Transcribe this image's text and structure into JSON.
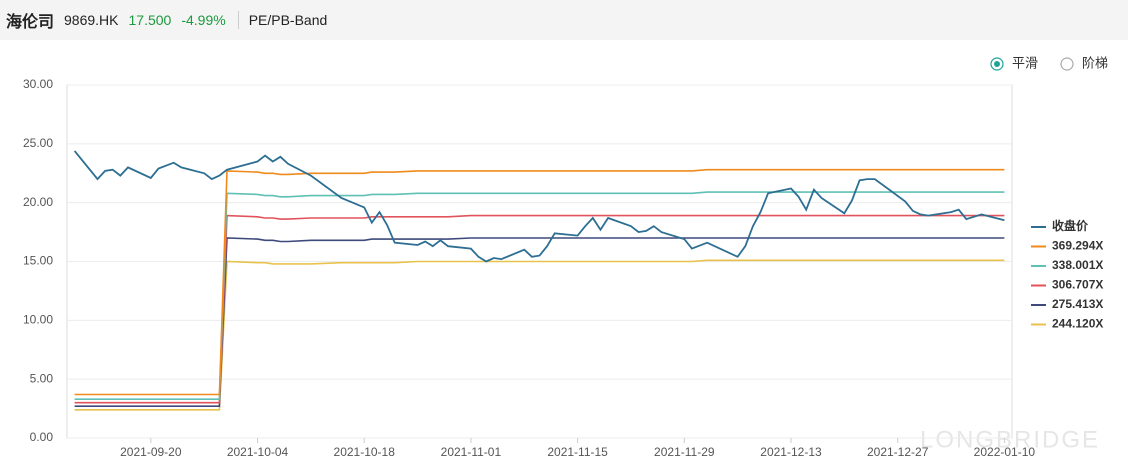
{
  "header": {
    "name": "海伦司",
    "code": "9869.HK",
    "price": "17.500",
    "change": "-4.99%",
    "indicator": "PE/PB-Band"
  },
  "toggle": {
    "options": [
      "平滑",
      "阶梯"
    ]
  },
  "watermark": "LONGBRIDGE",
  "chart_data": {
    "type": "line",
    "x": [
      "2021-09-10",
      "2021-09-13",
      "2021-09-14",
      "2021-09-15",
      "2021-09-16",
      "2021-09-17",
      "2021-09-20",
      "2021-09-21",
      "2021-09-23",
      "2021-09-24",
      "2021-09-27",
      "2021-09-28",
      "2021-09-29",
      "2021-09-30",
      "2021-10-04",
      "2021-10-05",
      "2021-10-06",
      "2021-10-07",
      "2021-10-08",
      "2021-10-11",
      "2021-10-15",
      "2021-10-18",
      "2021-10-19",
      "2021-10-20",
      "2021-10-21",
      "2021-10-22",
      "2021-10-25",
      "2021-10-26",
      "2021-10-27",
      "2021-10-28",
      "2021-10-29",
      "2021-11-01",
      "2021-11-02",
      "2021-11-03",
      "2021-11-04",
      "2021-11-05",
      "2021-11-08",
      "2021-11-09",
      "2021-11-10",
      "2021-11-11",
      "2021-11-12",
      "2021-11-15",
      "2021-11-16",
      "2021-11-17",
      "2021-11-18",
      "2021-11-19",
      "2021-11-22",
      "2021-11-23",
      "2021-11-24",
      "2021-11-25",
      "2021-11-26",
      "2021-11-29",
      "2021-11-30",
      "2021-12-02",
      "2021-12-06",
      "2021-12-07",
      "2021-12-08",
      "2021-12-09",
      "2021-12-10",
      "2021-12-13",
      "2021-12-14",
      "2021-12-15",
      "2021-12-16",
      "2021-12-17",
      "2021-12-20",
      "2021-12-21",
      "2021-12-22",
      "2021-12-23",
      "2021-12-24",
      "2021-12-28",
      "2021-12-29",
      "2021-12-30",
      "2021-12-31",
      "2022-01-03",
      "2022-01-04",
      "2022-01-05",
      "2022-01-06",
      "2022-01-07",
      "2022-01-10"
    ],
    "xlim": [
      "2021-09-09",
      "2022-01-11"
    ],
    "xticks": [
      "2021-09-20",
      "2021-10-04",
      "2021-10-18",
      "2021-11-01",
      "2021-11-15",
      "2021-11-29",
      "2021-12-13",
      "2021-12-27",
      "2022-01-10"
    ],
    "ylim": [
      0,
      30
    ],
    "yticks": [
      {
        "value": 0,
        "label": "0.00"
      },
      {
        "value": 5,
        "label": "5.00"
      },
      {
        "value": 10,
        "label": "10.00"
      },
      {
        "value": 15,
        "label": "15.00"
      },
      {
        "value": 20,
        "label": "20.00"
      },
      {
        "value": 25,
        "label": "25.00"
      },
      {
        "value": 30,
        "label": "30.00"
      }
    ],
    "grid": true,
    "legend": "right",
    "series": [
      {
        "name": "收盘价",
        "color": "#2d6e93",
        "values": [
          24.4,
          22.0,
          22.7,
          22.8,
          22.3,
          23.0,
          22.1,
          22.9,
          23.4,
          23.0,
          22.5,
          22.0,
          22.3,
          22.8,
          23.5,
          24.0,
          23.5,
          23.9,
          23.3,
          22.3,
          20.4,
          19.6,
          18.3,
          19.2,
          18.1,
          16.6,
          16.4,
          16.7,
          16.3,
          16.8,
          16.3,
          16.1,
          15.4,
          15.0,
          15.3,
          15.2,
          16.0,
          15.4,
          15.5,
          16.3,
          17.4,
          17.2,
          18.0,
          18.7,
          17.7,
          18.7,
          18.0,
          17.5,
          17.6,
          18.0,
          17.5,
          16.9,
          16.1,
          16.6,
          15.4,
          16.3,
          18.0,
          19.2,
          20.8,
          21.2,
          20.5,
          19.4,
          21.1,
          20.4,
          19.1,
          20.2,
          21.9,
          22.0,
          22.0,
          20.1,
          19.3,
          19.0,
          18.9,
          19.2,
          19.4,
          18.6,
          18.8,
          19.0,
          18.5
        ]
      },
      {
        "name": "369.294X",
        "color": "#f08a1c",
        "values": [
          3.7,
          3.7,
          3.7,
          3.7,
          3.7,
          3.7,
          3.7,
          3.7,
          3.7,
          3.7,
          3.7,
          3.7,
          3.7,
          22.7,
          22.6,
          22.5,
          22.5,
          22.4,
          22.4,
          22.5,
          22.5,
          22.5,
          22.6,
          22.6,
          22.6,
          22.6,
          22.7,
          22.7,
          22.7,
          22.7,
          22.7,
          22.7,
          22.7,
          22.7,
          22.7,
          22.7,
          22.7,
          22.7,
          22.7,
          22.7,
          22.7,
          22.7,
          22.7,
          22.7,
          22.7,
          22.7,
          22.7,
          22.7,
          22.7,
          22.7,
          22.7,
          22.7,
          22.7,
          22.8,
          22.8,
          22.8,
          22.8,
          22.8,
          22.8,
          22.8,
          22.8,
          22.8,
          22.8,
          22.8,
          22.8,
          22.8,
          22.8,
          22.8,
          22.8,
          22.8,
          22.8,
          22.8,
          22.8,
          22.8,
          22.8,
          22.8,
          22.8,
          22.8,
          22.8
        ]
      },
      {
        "name": "338.001X",
        "color": "#5fc0b5",
        "values": [
          3.3,
          3.3,
          3.3,
          3.3,
          3.3,
          3.3,
          3.3,
          3.3,
          3.3,
          3.3,
          3.3,
          3.3,
          3.3,
          20.8,
          20.7,
          20.6,
          20.6,
          20.5,
          20.5,
          20.6,
          20.6,
          20.6,
          20.7,
          20.7,
          20.7,
          20.7,
          20.8,
          20.8,
          20.8,
          20.8,
          20.8,
          20.8,
          20.8,
          20.8,
          20.8,
          20.8,
          20.8,
          20.8,
          20.8,
          20.8,
          20.8,
          20.8,
          20.8,
          20.8,
          20.8,
          20.8,
          20.8,
          20.8,
          20.8,
          20.8,
          20.8,
          20.8,
          20.8,
          20.9,
          20.9,
          20.9,
          20.9,
          20.9,
          20.9,
          20.9,
          20.9,
          20.9,
          20.9,
          20.9,
          20.9,
          20.9,
          20.9,
          20.9,
          20.9,
          20.9,
          20.9,
          20.9,
          20.9,
          20.9,
          20.9,
          20.9,
          20.9,
          20.9,
          20.9
        ]
      },
      {
        "name": "306.707X",
        "color": "#e0535b",
        "values": [
          3.0,
          3.0,
          3.0,
          3.0,
          3.0,
          3.0,
          3.0,
          3.0,
          3.0,
          3.0,
          3.0,
          3.0,
          3.0,
          18.9,
          18.8,
          18.7,
          18.7,
          18.6,
          18.6,
          18.7,
          18.7,
          18.7,
          18.8,
          18.8,
          18.8,
          18.8,
          18.8,
          18.8,
          18.8,
          18.8,
          18.8,
          18.9,
          18.9,
          18.9,
          18.9,
          18.9,
          18.9,
          18.9,
          18.9,
          18.9,
          18.9,
          18.9,
          18.9,
          18.9,
          18.9,
          18.9,
          18.9,
          18.9,
          18.9,
          18.9,
          18.9,
          18.9,
          18.9,
          18.9,
          18.9,
          18.9,
          18.9,
          18.9,
          18.9,
          18.9,
          18.9,
          18.9,
          18.9,
          18.9,
          18.9,
          18.9,
          18.9,
          18.9,
          18.9,
          18.9,
          18.9,
          18.9,
          18.9,
          18.9,
          18.9,
          18.9,
          18.9,
          18.9,
          18.9
        ]
      },
      {
        "name": "275.413X",
        "color": "#3e4a7c",
        "values": [
          2.7,
          2.7,
          2.7,
          2.7,
          2.7,
          2.7,
          2.7,
          2.7,
          2.7,
          2.7,
          2.7,
          2.7,
          2.7,
          17.0,
          16.9,
          16.8,
          16.8,
          16.7,
          16.7,
          16.8,
          16.8,
          16.8,
          16.9,
          16.9,
          16.9,
          16.9,
          16.9,
          16.9,
          16.9,
          16.9,
          16.9,
          17.0,
          17.0,
          17.0,
          17.0,
          17.0,
          17.0,
          17.0,
          17.0,
          17.0,
          17.0,
          17.0,
          17.0,
          17.0,
          17.0,
          17.0,
          17.0,
          17.0,
          17.0,
          17.0,
          17.0,
          17.0,
          17.0,
          17.0,
          17.0,
          17.0,
          17.0,
          17.0,
          17.0,
          17.0,
          17.0,
          17.0,
          17.0,
          17.0,
          17.0,
          17.0,
          17.0,
          17.0,
          17.0,
          17.0,
          17.0,
          17.0,
          17.0,
          17.0,
          17.0,
          17.0,
          17.0,
          17.0,
          17.0
        ]
      },
      {
        "name": "244.120X",
        "color": "#e8c24c",
        "values": [
          2.4,
          2.4,
          2.4,
          2.4,
          2.4,
          2.4,
          2.4,
          2.4,
          2.4,
          2.4,
          2.4,
          2.4,
          2.4,
          15.0,
          14.9,
          14.9,
          14.8,
          14.8,
          14.8,
          14.8,
          14.9,
          14.9,
          14.9,
          14.9,
          14.9,
          14.9,
          15.0,
          15.0,
          15.0,
          15.0,
          15.0,
          15.0,
          15.0,
          15.0,
          15.0,
          15.0,
          15.0,
          15.0,
          15.0,
          15.0,
          15.0,
          15.0,
          15.0,
          15.0,
          15.0,
          15.0,
          15.0,
          15.0,
          15.0,
          15.0,
          15.0,
          15.0,
          15.0,
          15.1,
          15.1,
          15.1,
          15.1,
          15.1,
          15.1,
          15.1,
          15.1,
          15.1,
          15.1,
          15.1,
          15.1,
          15.1,
          15.1,
          15.1,
          15.1,
          15.1,
          15.1,
          15.1,
          15.1,
          15.1,
          15.1,
          15.1,
          15.1,
          15.1,
          15.1
        ]
      }
    ]
  }
}
